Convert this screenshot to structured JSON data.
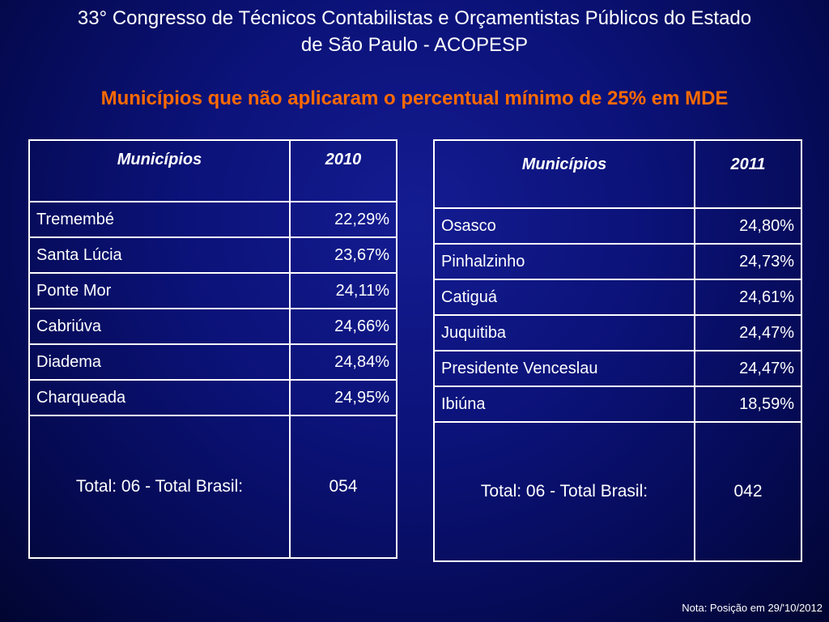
{
  "slide": {
    "title_line1": "33° Congresso de Técnicos Contabilistas e Orçamentistas Públicos do Estado",
    "title_line2": "de São Paulo  - ACOPESP",
    "subtitle": "Municípios que não aplicaram o percentual mínimo de 25% em MDE",
    "note": "Nota: Posição em 29/'10/2012"
  },
  "colors": {
    "background": "#0b1278",
    "subtitle": "#ff6a00",
    "text": "#ffffff"
  },
  "table_2010": {
    "header": [
      "Municípios",
      "2010"
    ],
    "rows": [
      {
        "name": "Tremembé",
        "value": "22,29%"
      },
      {
        "name": "Santa Lúcia",
        "value": "23,67%"
      },
      {
        "name": "Ponte Mor",
        "value": "24,11%"
      },
      {
        "name": "Cabriúva",
        "value": "24,66%"
      },
      {
        "name": "Diadema",
        "value": "24,84%"
      },
      {
        "name": "Charqueada",
        "value": "24,95%"
      }
    ],
    "total_label": "Total: 06  - Total Brasil:",
    "total_value": "054"
  },
  "table_2011": {
    "header": [
      "Municípios",
      "2011"
    ],
    "rows": [
      {
        "name": "Osasco",
        "value": "24,80%"
      },
      {
        "name": "Pinhalzinho",
        "value": "24,73%"
      },
      {
        "name": "Catiguá",
        "value": "24,61%"
      },
      {
        "name": "Juquitiba",
        "value": "24,47%"
      },
      {
        "name": "Presidente Venceslau",
        "value": "24,47%"
      },
      {
        "name": "Ibiúna",
        "value": "18,59%"
      }
    ],
    "total_label": "Total: 06  - Total Brasil:",
    "total_value": "042"
  }
}
